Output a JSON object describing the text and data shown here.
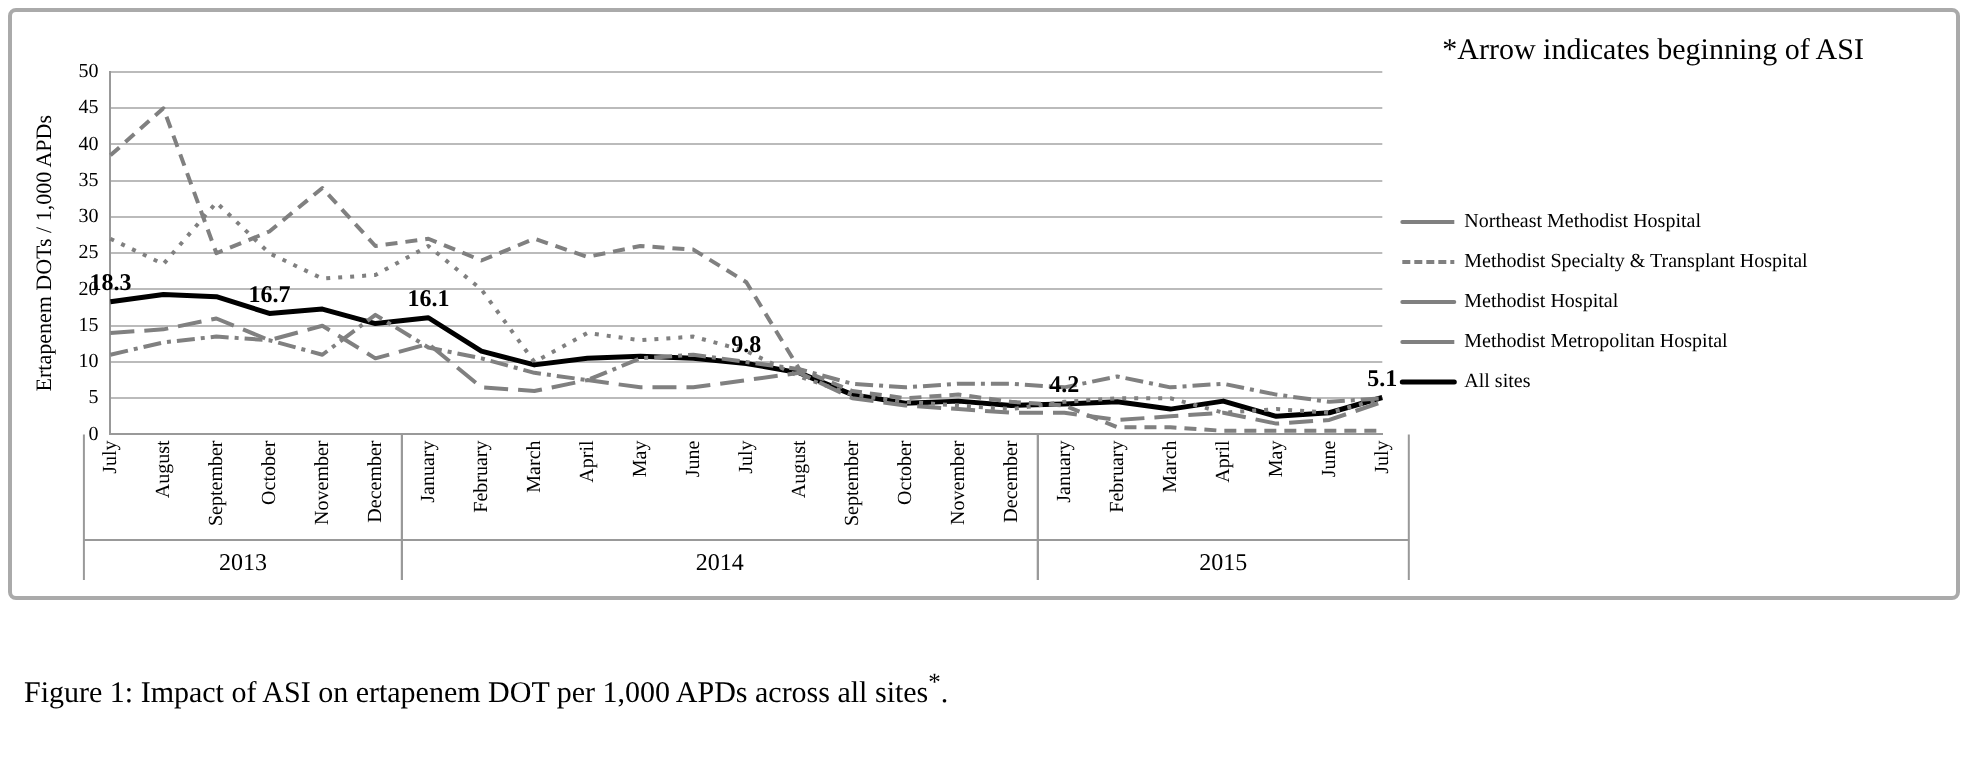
{
  "chart_data": {
    "type": "line",
    "ylabel": "Ertapenem DOTs / 1,000 APDs",
    "categories": [
      "July",
      "August",
      "September",
      "October",
      "November",
      "December",
      "January",
      "February",
      "March",
      "April",
      "May",
      "June",
      "July",
      "August",
      "September",
      "October",
      "November",
      "December",
      "January",
      "February",
      "March",
      "April",
      "May",
      "June",
      "July"
    ],
    "series": [
      {
        "name": "Northeast Methodist Hospital",
        "color": "#808080",
        "line_style": "dashed",
        "values": [
          38.5,
          45,
          25,
          28,
          34,
          26,
          27,
          24,
          27,
          24.5,
          26,
          25.5,
          21,
          9,
          6,
          5,
          5.5,
          4.5,
          4,
          1,
          1,
          0.5,
          0.5,
          0.5,
          0.5
        ]
      },
      {
        "name": "Methodist Specialty & Transplant Hospital",
        "color": "#808080",
        "line_style": "dotted",
        "values": [
          27,
          23.5,
          32,
          25,
          21.5,
          22,
          26,
          20,
          10,
          14,
          13,
          13.5,
          11.5,
          8,
          5.5,
          4.5,
          4,
          3.5,
          4.5,
          5,
          5,
          3,
          3.5,
          3,
          5
        ]
      },
      {
        "name": "Methodist Hospital",
        "color": "#808080",
        "line_style": "dashed",
        "values": [
          14,
          14.5,
          16,
          13,
          15,
          10.5,
          12.5,
          6.5,
          6,
          7.5,
          6.5,
          6.5,
          7.5,
          8.5,
          5,
          4,
          3.5,
          3,
          3,
          2,
          2.5,
          3,
          1.5,
          2,
          4.5
        ]
      },
      {
        "name": "Methodist Metropolitan Hospital",
        "color": "#808080",
        "line_style": "dashed",
        "values": [
          11,
          12.7,
          13.5,
          13,
          11,
          16.5,
          12,
          10.5,
          8.5,
          7.5,
          10.5,
          11,
          10,
          9,
          7,
          6.5,
          7,
          7,
          6.5,
          8,
          6.5,
          7,
          5.5,
          4.5,
          5
        ]
      },
      {
        "name": "All sites",
        "color": "#000000",
        "line_style": "solid",
        "values": [
          18.3,
          19.3,
          19,
          16.7,
          17.3,
          15.3,
          16.1,
          11.5,
          9.6,
          10.5,
          10.8,
          10.5,
          9.8,
          8.5,
          5.5,
          4.3,
          4.6,
          4,
          4.2,
          4.5,
          3.5,
          4.6,
          2.5,
          3,
          5.1
        ],
        "value_labels": [
          "18.3",
          null,
          null,
          "16.7",
          null,
          null,
          "16.1",
          null,
          null,
          null,
          null,
          null,
          "9.8",
          null,
          null,
          null,
          null,
          null,
          "4.2",
          null,
          null,
          null,
          null,
          null,
          "5.1"
        ]
      }
    ],
    "ylim": [
      0,
      50
    ],
    "yticks": [
      0,
      5,
      10,
      15,
      20,
      25,
      30,
      35,
      40,
      45,
      50
    ],
    "grid": "y",
    "legend": "right",
    "marker": "none",
    "annotations": [
      "2013",
      "2014",
      "2015",
      "*Arrow indicates beginning of ASI",
      "Figure 1: Impact of ASI on ertapenem DOT per 1,000 APDs across all sites$^{*}$."
    ]
  }
}
